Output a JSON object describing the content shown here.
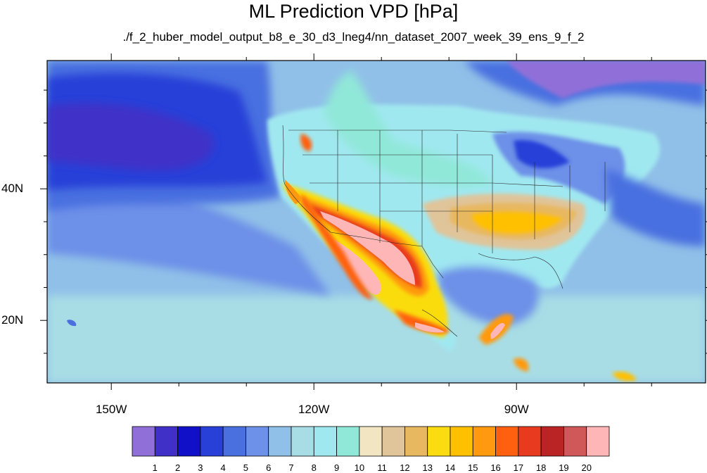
{
  "title": "ML Prediction VPD [hPa]",
  "subtitle": "./f_2_huber_model_output_b8_e_30_d3_lneg4/nn_dataset_2007_week_39_ens_9_f_2",
  "lon_labels": [
    {
      "label": "150W",
      "lon": -150
    },
    {
      "label": "120W",
      "lon": -120
    },
    {
      "label": "90W",
      "lon": -90
    }
  ],
  "lat_labels": [
    {
      "label": "40N",
      "lat": 40
    },
    {
      "label": "20N",
      "lat": 20
    }
  ],
  "colorbar": {
    "labels": [
      "1",
      "2",
      "3",
      "4",
      "5",
      "6",
      "7",
      "8",
      "9",
      "10",
      "11",
      "12",
      "13",
      "14",
      "15",
      "16",
      "17",
      "18",
      "19",
      "20"
    ],
    "colors": [
      "#9070d8",
      "#4030c8",
      "#1010c8",
      "#2840d8",
      "#4a70e0",
      "#6d90e8",
      "#90c0e8",
      "#a8dde5",
      "#a0e8f0",
      "#90e8d8",
      "#f2e6c2",
      "#e0c49a",
      "#e8b860",
      "#fadc10",
      "#ffc000",
      "#ff9a10",
      "#ff6010",
      "#e83a1e",
      "#bb2424",
      "#d05858",
      "#ffb6b6"
    ]
  },
  "chart_data": {
    "type": "heatmap",
    "title": "ML Prediction VPD [hPa]",
    "subtitle": "./f_2_huber_model_output_b8_e_30_d3_lneg4/nn_dataset_2007_week_39_ens_9_f_2",
    "units": "hPa",
    "lon_range": [
      -159.5,
      -62
    ],
    "lat_range": [
      10.5,
      59.5
    ],
    "levels": [
      1,
      2,
      3,
      4,
      5,
      6,
      7,
      8,
      9,
      10,
      11,
      12,
      13,
      14,
      15,
      16,
      17,
      18,
      19,
      20
    ],
    "regions": [
      {
        "name": "north pacific",
        "approx_value": 2
      },
      {
        "name": "subtropical pacific",
        "approx_value": 6
      },
      {
        "name": "southwest us / northwest mexico",
        "approx_value": 20
      },
      {
        "name": "southeast us",
        "approx_value": 13
      },
      {
        "name": "canada",
        "approx_value": 7
      },
      {
        "name": "gulf of mexico",
        "approx_value": 5
      }
    ]
  }
}
